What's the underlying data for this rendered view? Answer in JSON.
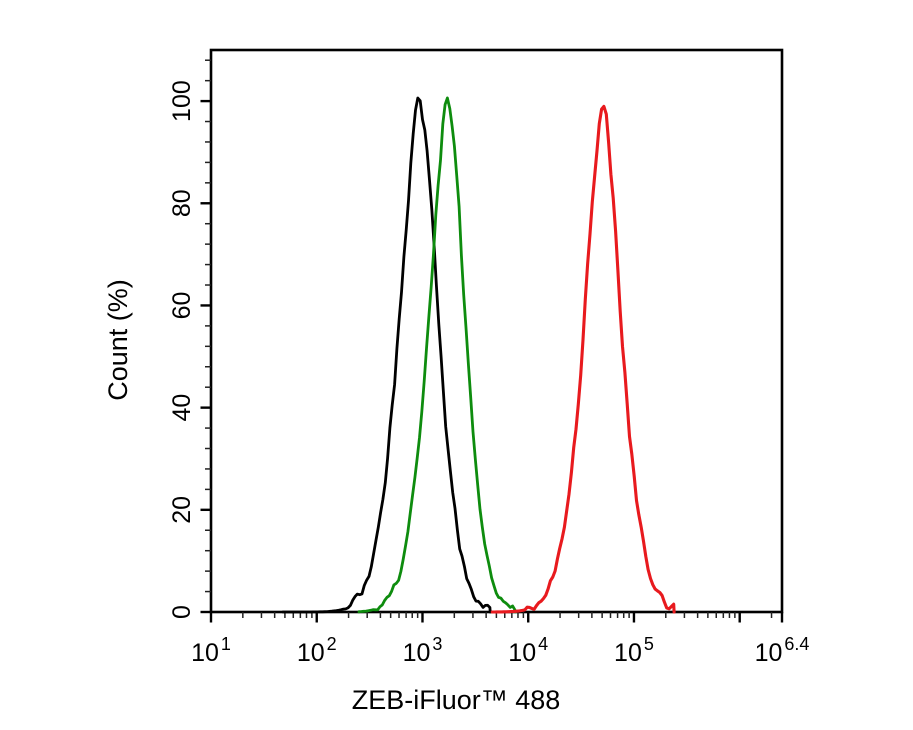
{
  "figure": {
    "background_color": "#ffffff",
    "frame_color": "#000000"
  },
  "chart_data": {
    "type": "line",
    "subtype": "flow-cytometry-histogram-overlay",
    "title": "",
    "xlabel": "ZEB-iFluor™ 488",
    "ylabel": "Count  (%)",
    "grid": false,
    "legend": null,
    "x_scale": "log10",
    "x_range_log10": [
      1.0,
      6.4
    ],
    "x_major_ticks_log10": [
      1,
      2,
      3,
      4,
      5,
      6,
      6.4
    ],
    "x_tick_labels": [
      {
        "base": "10",
        "exp": "1",
        "log": 1
      },
      {
        "base": "10",
        "exp": "2",
        "log": 2
      },
      {
        "base": "10",
        "exp": "3",
        "log": 3
      },
      {
        "base": "10",
        "exp": "4",
        "log": 4
      },
      {
        "base": "10",
        "exp": "5",
        "log": 5
      },
      {
        "base": "10",
        "exp": "6.4",
        "log": 6.4
      }
    ],
    "x_minor_ticks": "log-decade-subdivisions-2-to-9",
    "y_range": [
      0,
      110
    ],
    "y_major_ticks": [
      0,
      20,
      40,
      60,
      80,
      100
    ],
    "y_minor_tick_step": 4,
    "y_unit": "percent",
    "series": [
      {
        "name": "peak-black",
        "color": "#000000",
        "stroke_width": 2.8,
        "peak_x_value": 950,
        "peak_log10": 2.976,
        "peak_y_pct": 100,
        "sigma_left_log10": 0.185,
        "sigma_right_log10": 0.165,
        "shape_exponent": 1.7,
        "extent_log10": [
          1.68,
          3.64
        ],
        "seed": 3
      },
      {
        "name": "peak-green",
        "color": "#0e8c0e",
        "stroke_width": 2.8,
        "peak_x_value": 1750,
        "peak_log10": 3.242,
        "peak_y_pct": 100,
        "sigma_left_log10": 0.175,
        "sigma_right_log10": 0.155,
        "shape_exponent": 1.7,
        "extent_log10": [
          2.4,
          3.88
        ],
        "seed": 11
      },
      {
        "name": "peak-red",
        "color": "#e81a1e",
        "stroke_width": 3.1,
        "peak_x_value": 51000,
        "peak_log10": 4.707,
        "peak_y_pct": 100,
        "sigma_left_log10": 0.165,
        "sigma_right_log10": 0.16,
        "shape_exponent": 1.6,
        "extent_log10": [
          3.66,
          5.38
        ],
        "seed": 23
      }
    ]
  }
}
